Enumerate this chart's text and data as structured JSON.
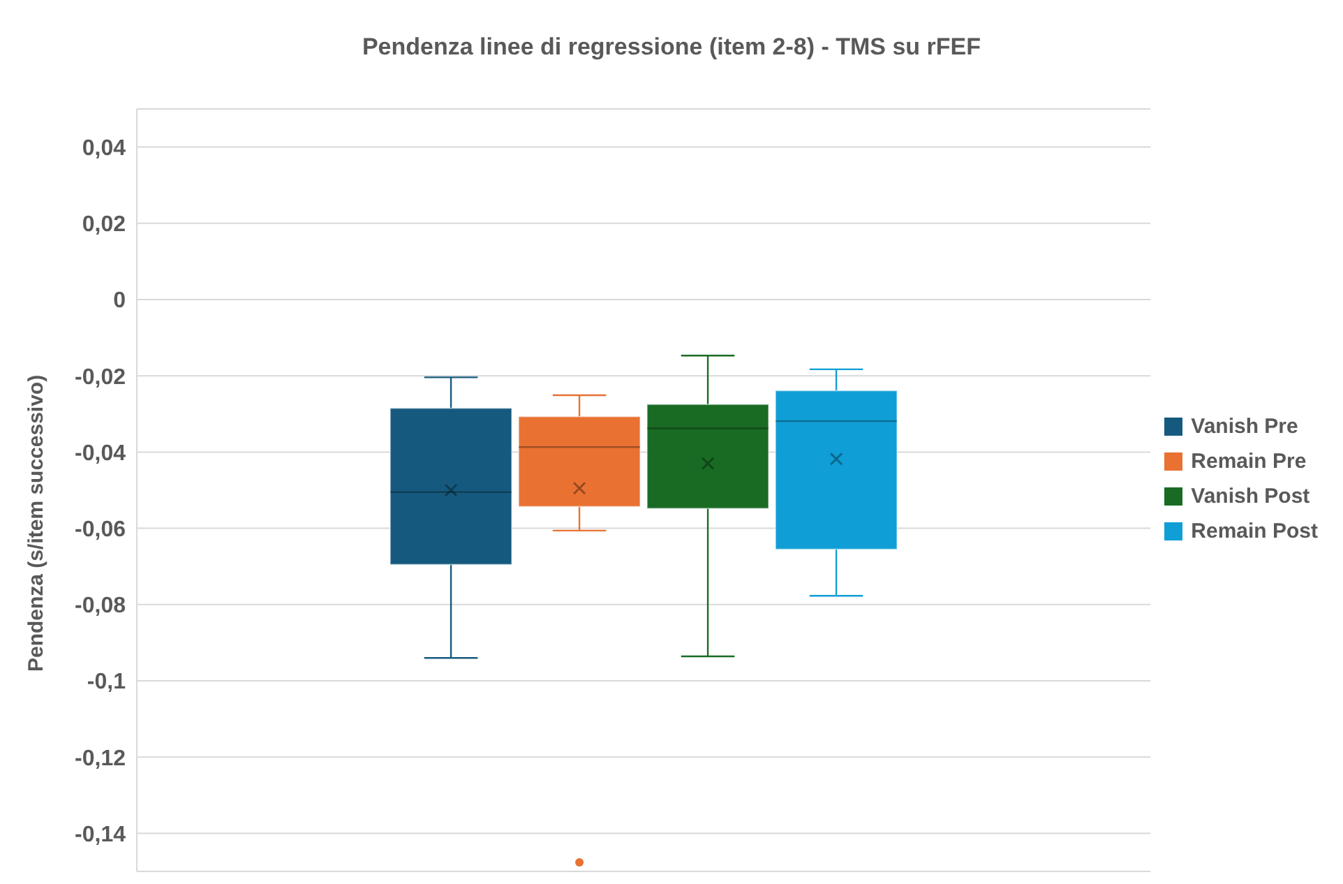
{
  "chart_data": {
    "type": "box",
    "title": "Pendenza linee di regressione (item 2-8) - TMS su rFEF",
    "ylabel": "Pendenza (s/item successivo)",
    "categories": [
      null
    ],
    "ylim": [
      -0.15,
      0.05
    ],
    "yticks": [
      {
        "value": 0.04,
        "label": "0,04"
      },
      {
        "value": 0.02,
        "label": "0,02"
      },
      0,
      {
        "value": -0.02,
        "label": "-0,02"
      },
      {
        "value": -0.04,
        "label": "-0,04"
      },
      {
        "value": -0.06,
        "label": "-0,06"
      },
      {
        "value": -0.08,
        "label": "-0,08"
      },
      {
        "value": -0.1,
        "label": "-0,1"
      },
      {
        "value": -0.12,
        "label": "-0,12"
      },
      {
        "value": -0.14,
        "label": "-0,14"
      }
    ],
    "grid": "y",
    "legend": "right",
    "series": [
      {
        "name": "Vanish Pre",
        "color": "#155a7e",
        "boxes": [
          {
            "low": -0.094,
            "q1": -0.0695,
            "median": -0.0505,
            "q3": -0.0285,
            "high": -0.0204,
            "mean": -0.05
          }
        ]
      },
      {
        "name": "Remain Pre",
        "color": "#e97132",
        "boxes": [
          {
            "low": -0.0606,
            "q1": -0.0543,
            "median": -0.0387,
            "q3": -0.0307,
            "high": -0.0251,
            "mean": -0.0495,
            "outliers": [
              -0.1476
            ]
          }
        ]
      },
      {
        "name": "Vanish Post",
        "color": "#196b24",
        "boxes": [
          {
            "low": -0.0936,
            "q1": -0.0548,
            "median": -0.0338,
            "q3": -0.0275,
            "high": -0.0147,
            "mean": -0.043
          }
        ]
      },
      {
        "name": "Remain Post",
        "color": "#0f9ed5",
        "boxes": [
          {
            "low": -0.0777,
            "q1": -0.0655,
            "median": -0.0319,
            "q3": -0.0239,
            "high": -0.0183,
            "mean": -0.0418
          }
        ]
      }
    ]
  }
}
